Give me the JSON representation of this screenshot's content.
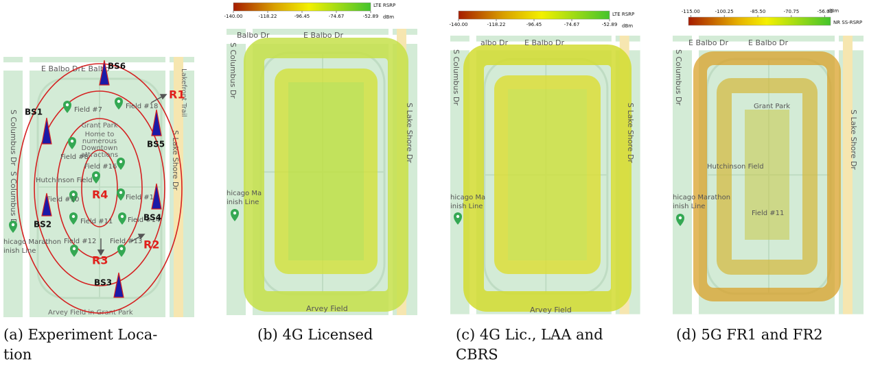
{
  "panels": [
    {
      "caption": [
        "(a) Experiment Loca-",
        "tion"
      ],
      "streets": [
        "E Balbo Dr",
        "E Balbo",
        "S Columbus Dr",
        "S Columbus Dr",
        "S Lake Shore Dr",
        "Lakefront Trail",
        "Arvey Field in Grant Park"
      ],
      "park": [
        "Grant Park",
        "Home to",
        "numerous",
        "Downtown",
        "attractions",
        "Hutchinson Field"
      ],
      "marathon": [
        "hicago Marathon",
        "inish Line"
      ],
      "fields": [
        "Field #7",
        "Field #18",
        "Field #8",
        "Field #16",
        "Field #10",
        "Field #15",
        "Field #11",
        "Field #14",
        "Field #12",
        "Field #13"
      ],
      "base_stations": [
        "BS1",
        "BS2",
        "BS3",
        "BS4",
        "BS5",
        "BS6"
      ],
      "regions": [
        "R1",
        "R2",
        "R3",
        "R4"
      ]
    },
    {
      "caption": [
        "(b) 4G Licensed"
      ],
      "streets": [
        "Balbo Dr",
        "E Balbo Dr",
        "S Columbus Dr",
        "S Lake Shore Dr",
        "Arvey Field"
      ],
      "marathon": [
        "hicago Ma",
        "inish Line"
      ],
      "colorbar": {
        "title": "LTE RSRP",
        "unit": "dBm",
        "range": [
          -140,
          -52.89
        ],
        "ticks": [
          {
            "value": -140,
            "label": "-140.00"
          },
          {
            "value": -118.22,
            "label": "-118.22"
          },
          {
            "value": -96.45,
            "label": "-96.45"
          },
          {
            "value": -74.67,
            "label": "-74.67"
          },
          {
            "value": -52.89,
            "label": "-52.89"
          }
        ]
      }
    },
    {
      "caption": [
        "(c) 4G Lic., LAA and",
        "CBRS"
      ],
      "streets": [
        "albo Dr",
        "E Balbo Dr",
        "S Columbus Dr",
        "S Lake Shore Dr",
        "Arvey Field"
      ],
      "marathon": [
        "hicago Ma",
        "inish Line"
      ],
      "colorbar": {
        "title": "LTE RSRP",
        "unit": "dBm",
        "range": [
          -140,
          -52.89
        ],
        "ticks": [
          {
            "value": -140,
            "label": "-140.00"
          },
          {
            "value": -118.22,
            "label": "-118.22"
          },
          {
            "value": -96.45,
            "label": "-96.45"
          },
          {
            "value": -74.67,
            "label": "-74.67"
          },
          {
            "value": -52.89,
            "label": "-52.89"
          }
        ]
      }
    },
    {
      "caption": [
        "(d) 5G FR1 and FR2"
      ],
      "streets": [
        "E Balbo Dr",
        "E Balbo Dr",
        "S Columbus Dr",
        "S Lake Shore Dr"
      ],
      "park": [
        "Grant Park",
        "Hutchinson Field",
        "Field #11"
      ],
      "marathon": [
        "hicago Marathon",
        "inish Line"
      ],
      "colorbar": {
        "title": "NR SS-RSRP",
        "unit": "dBm",
        "range": [
          -116,
          -53.5
        ],
        "ticks": [
          {
            "value": -115,
            "label": "-115.00"
          },
          {
            "value": -100.25,
            "label": "-100.25"
          },
          {
            "value": -85.5,
            "label": "-85.50"
          },
          {
            "value": -70.75,
            "label": "-70.75"
          },
          {
            "value": -56,
            "label": "-56.00"
          }
        ]
      }
    }
  ]
}
